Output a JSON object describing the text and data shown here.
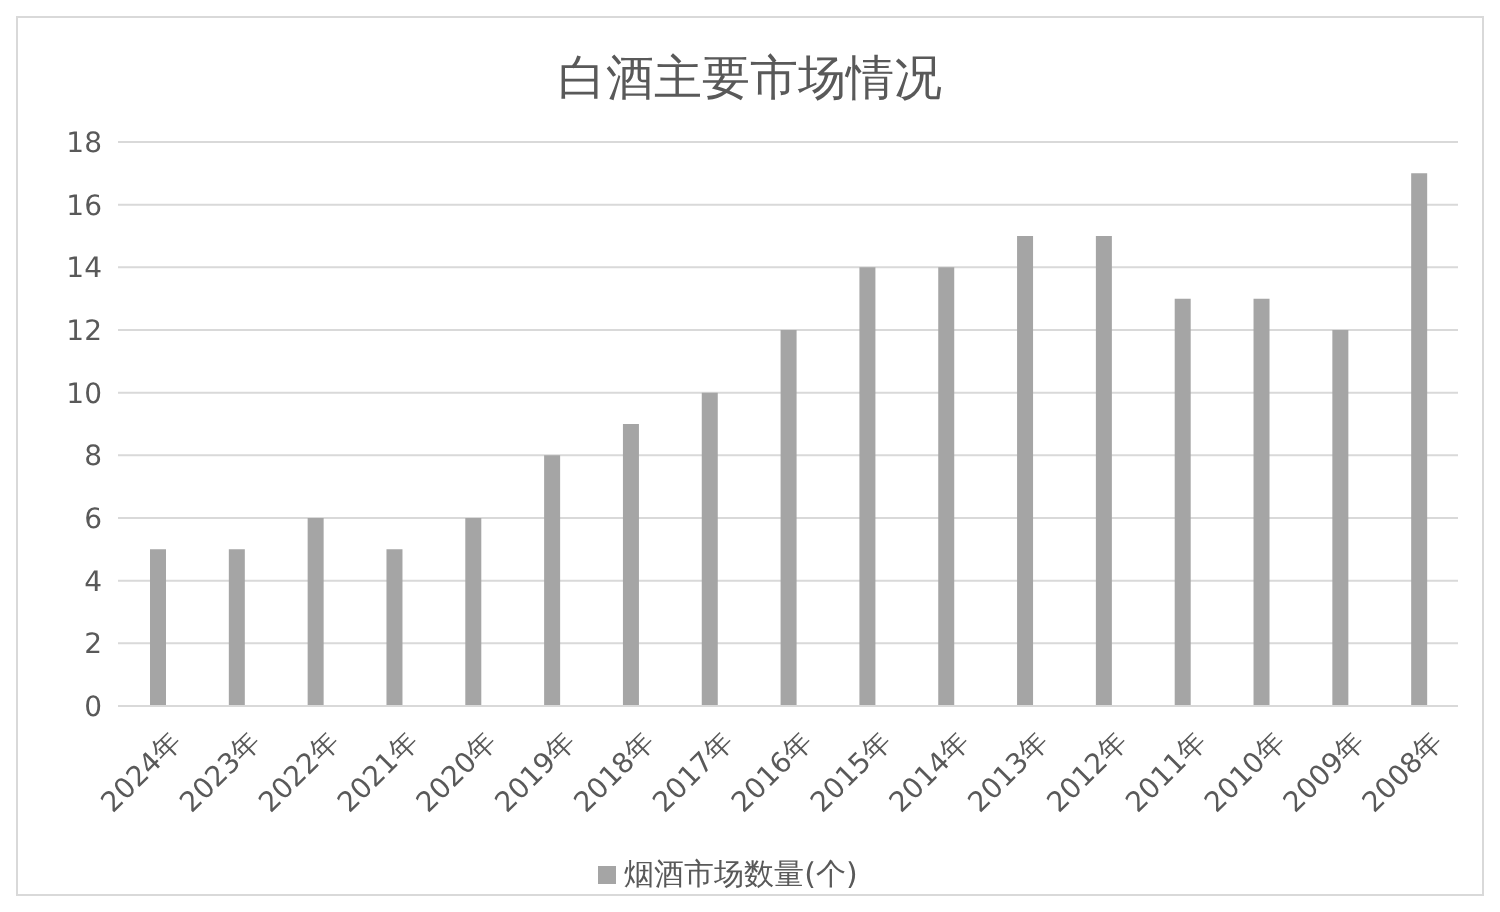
{
  "chart_data": {
    "type": "bar",
    "title": "白酒主要市场情况",
    "categories": [
      "2024年",
      "2023年",
      "2022年",
      "2021年",
      "2020年",
      "2019年",
      "2018年",
      "2017年",
      "2016年",
      "2015年",
      "2014年",
      "2013年",
      "2012年",
      "2011年",
      "2010年",
      "2009年",
      "2008年"
    ],
    "series": [
      {
        "name": "烟酒市场数量(个)",
        "color": "#a5a5a5",
        "values": [
          5,
          5,
          6,
          5,
          6,
          8,
          9,
          10,
          12,
          14,
          14,
          15,
          15,
          13,
          13,
          12,
          17
        ]
      }
    ],
    "ylim": [
      0,
      18
    ],
    "yticks": [
      0,
      2,
      4,
      6,
      8,
      10,
      12,
      14,
      16,
      18
    ],
    "grid": "y",
    "legend": "bottom"
  }
}
